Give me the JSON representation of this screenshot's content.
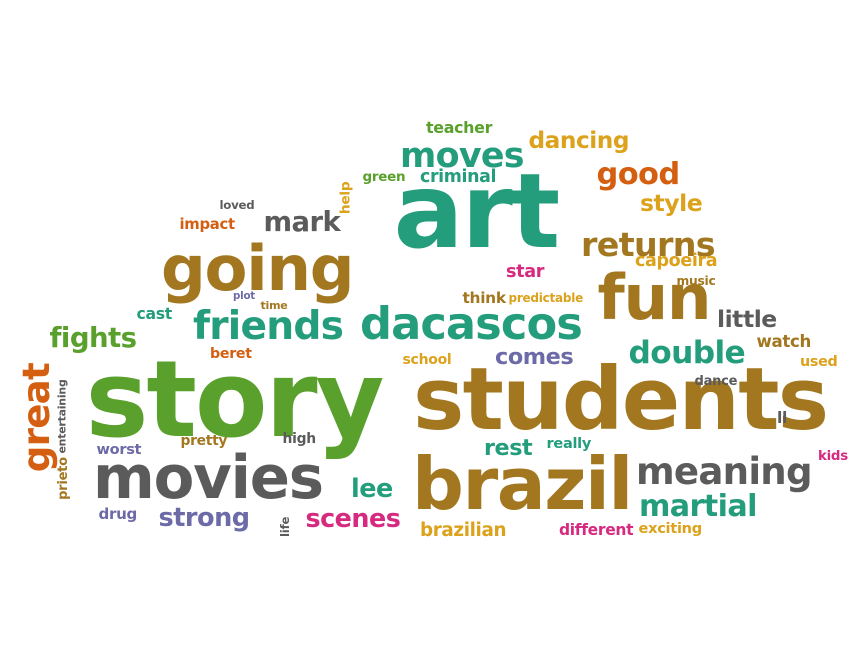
{
  "palette": {
    "teal": "#239d7c",
    "brown": "#a27720",
    "green": "#5aa02c",
    "gray": "#5b5b5b",
    "orange": "#d45f11",
    "gold": "#dca21c",
    "purple": "#6d6aa8",
    "magenta": "#d6297f"
  },
  "words": [
    {
      "id": "art",
      "text": "art",
      "color": "teal"
    },
    {
      "id": "story",
      "text": "story",
      "color": "green"
    },
    {
      "id": "students",
      "text": "students",
      "color": "brown"
    },
    {
      "id": "brazil",
      "text": "brazil",
      "color": "brown"
    },
    {
      "id": "movies",
      "text": "movies",
      "color": "gray"
    },
    {
      "id": "going",
      "text": "going",
      "color": "brown"
    },
    {
      "id": "fun",
      "text": "fun",
      "color": "brown"
    },
    {
      "id": "dacascos",
      "text": "dacascos",
      "color": "teal"
    },
    {
      "id": "friends",
      "text": "friends",
      "color": "teal"
    },
    {
      "id": "meaning",
      "text": "meaning",
      "color": "gray"
    },
    {
      "id": "moves",
      "text": "moves",
      "color": "teal"
    },
    {
      "id": "returns",
      "text": "returns",
      "color": "brown"
    },
    {
      "id": "double",
      "text": "double",
      "color": "teal"
    },
    {
      "id": "martial",
      "text": "martial",
      "color": "teal"
    },
    {
      "id": "good",
      "text": "good",
      "color": "orange"
    },
    {
      "id": "mark",
      "text": "mark",
      "color": "gray"
    },
    {
      "id": "fights",
      "text": "fights",
      "color": "green"
    },
    {
      "id": "strong",
      "text": "strong",
      "color": "purple"
    },
    {
      "id": "scenes",
      "text": "scenes",
      "color": "magenta"
    },
    {
      "id": "lee",
      "text": "lee",
      "color": "teal"
    },
    {
      "id": "great",
      "text": "great",
      "color": "orange"
    },
    {
      "id": "dancing",
      "text": "dancing",
      "color": "gold"
    },
    {
      "id": "style",
      "text": "style",
      "color": "gold"
    },
    {
      "id": "little",
      "text": "little",
      "color": "gray"
    },
    {
      "id": "comes",
      "text": "comes",
      "color": "purple"
    },
    {
      "id": "rest",
      "text": "rest",
      "color": "teal"
    },
    {
      "id": "capoeira",
      "text": "capoeira",
      "color": "gold"
    },
    {
      "id": "watch",
      "text": "watch",
      "color": "brown"
    },
    {
      "id": "brazilian",
      "text": "brazilian",
      "color": "gold"
    },
    {
      "id": "criminal",
      "text": "criminal",
      "color": "teal"
    },
    {
      "id": "teacher",
      "text": "teacher",
      "color": "green"
    },
    {
      "id": "star",
      "text": "star",
      "color": "magenta"
    },
    {
      "id": "exciting",
      "text": "exciting",
      "color": "gold"
    },
    {
      "id": "different",
      "text": "different",
      "color": "magenta"
    },
    {
      "id": "cast",
      "text": "cast",
      "color": "teal"
    },
    {
      "id": "impact",
      "text": "impact",
      "color": "orange"
    },
    {
      "id": "school",
      "text": "school",
      "color": "gold"
    },
    {
      "id": "pretty",
      "text": "pretty",
      "color": "brown"
    },
    {
      "id": "worst",
      "text": "worst",
      "color": "purple"
    },
    {
      "id": "high",
      "text": "high",
      "color": "gray"
    },
    {
      "id": "really",
      "text": "really",
      "color": "teal"
    },
    {
      "id": "think",
      "text": "think",
      "color": "brown"
    },
    {
      "id": "predictable",
      "text": "predictable",
      "color": "gold"
    },
    {
      "id": "used",
      "text": "used",
      "color": "gold"
    },
    {
      "id": "kids",
      "text": "kids",
      "color": "magenta"
    },
    {
      "id": "prieto",
      "text": "prieto",
      "color": "brown"
    },
    {
      "id": "drug",
      "text": "drug",
      "color": "purple"
    },
    {
      "id": "beret",
      "text": "beret",
      "color": "orange"
    },
    {
      "id": "loved",
      "text": "loved",
      "color": "gray"
    },
    {
      "id": "help",
      "text": "help",
      "color": "gold"
    },
    {
      "id": "green",
      "text": "green",
      "color": "green"
    },
    {
      "id": "time",
      "text": "time",
      "color": "brown"
    },
    {
      "id": "plot",
      "text": "plot",
      "color": "purple"
    },
    {
      "id": "music",
      "text": "music",
      "color": "brown"
    },
    {
      "id": "dance",
      "text": "dance",
      "color": "gray"
    },
    {
      "id": "life",
      "text": "life",
      "color": "gray"
    },
    {
      "id": "ll",
      "text": "ll",
      "color": "gray"
    },
    {
      "id": "entertaining",
      "text": "entertaining",
      "color": "gray"
    }
  ]
}
